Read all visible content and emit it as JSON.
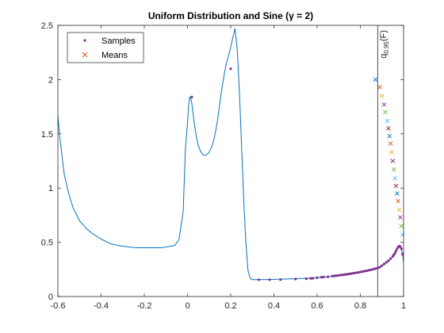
{
  "chart_data": {
    "type": "line",
    "title": "Uniform Distribution and Sine  (γ = 2)",
    "xlabel": "",
    "ylabel": "",
    "xlim": [
      -0.6,
      1
    ],
    "ylim": [
      0,
      2.5
    ],
    "xticks": [
      -0.6,
      -0.4,
      -0.2,
      0,
      0.2,
      0.4,
      0.6,
      0.8,
      1
    ],
    "xtick_labels": [
      "-0.6",
      "-0.4",
      "-0.2",
      "0",
      "0.2",
      "0.4",
      "0.6",
      "0.8",
      "1"
    ],
    "yticks": [
      0,
      0.5,
      1,
      1.5,
      2,
      2.5
    ],
    "ytick_labels": [
      "0",
      "0.5",
      "1",
      "1.5",
      "2",
      "2.5"
    ],
    "grid": false,
    "legend": {
      "location": "top-left",
      "entries": [
        {
          "label": "Samples",
          "marker": "dot",
          "color": "#7E2F8E"
        },
        {
          "label": "Means",
          "marker": "x",
          "color": "#D95319"
        }
      ]
    },
    "vline": {
      "x": 0.88,
      "label_main": "q",
      "label_sub": "0.95",
      "label_tail": "(F)",
      "color": "#000000"
    },
    "curve": {
      "color": "#0072BD",
      "x": [
        -0.6,
        -0.59,
        -0.58,
        -0.57,
        -0.55,
        -0.53,
        -0.5,
        -0.47,
        -0.44,
        -0.4,
        -0.36,
        -0.32,
        -0.28,
        -0.24,
        -0.2,
        -0.16,
        -0.12,
        -0.09,
        -0.06,
        -0.04,
        -0.02,
        -0.01,
        0,
        0.005,
        0.01,
        0.015,
        0.02,
        0.03,
        0.04,
        0.05,
        0.06,
        0.07,
        0.08,
        0.09,
        0.1,
        0.11,
        0.12,
        0.13,
        0.14,
        0.15,
        0.16,
        0.17,
        0.18,
        0.19,
        0.2,
        0.21,
        0.22,
        0.23,
        0.24,
        0.25,
        0.26,
        0.27,
        0.28,
        0.29,
        0.3,
        0.32,
        0.36,
        0.4,
        0.45,
        0.5,
        0.55,
        0.6,
        0.65,
        0.7,
        0.75,
        0.8,
        0.84,
        0.87,
        0.9,
        0.93,
        0.95,
        0.96,
        0.97,
        0.975,
        0.98,
        0.985,
        0.99,
        0.995,
        1.0
      ],
      "y": [
        1.67,
        1.45,
        1.28,
        1.12,
        0.95,
        0.82,
        0.7,
        0.63,
        0.58,
        0.53,
        0.49,
        0.47,
        0.46,
        0.45,
        0.45,
        0.45,
        0.45,
        0.46,
        0.47,
        0.52,
        0.78,
        1.35,
        1.6,
        1.76,
        1.84,
        1.83,
        1.78,
        1.62,
        1.48,
        1.39,
        1.34,
        1.31,
        1.3,
        1.31,
        1.33,
        1.37,
        1.43,
        1.52,
        1.64,
        1.79,
        1.93,
        2.05,
        2.15,
        2.22,
        2.3,
        2.39,
        2.47,
        2.28,
        1.9,
        1.4,
        0.9,
        0.5,
        0.24,
        0.17,
        0.155,
        0.155,
        0.156,
        0.158,
        0.161,
        0.164,
        0.168,
        0.174,
        0.182,
        0.192,
        0.205,
        0.222,
        0.24,
        0.26,
        0.285,
        0.325,
        0.37,
        0.4,
        0.44,
        0.46,
        0.47,
        0.46,
        0.44,
        0.39,
        0.32
      ]
    },
    "samples": {
      "color": "#7E2F8E",
      "x": [
        0.02,
        0.2,
        0.33,
        0.38,
        0.43,
        0.5,
        0.55,
        0.57,
        0.58,
        0.6,
        0.62,
        0.63,
        0.65,
        0.67,
        0.68,
        0.69,
        0.7,
        0.71,
        0.72,
        0.73,
        0.74,
        0.75,
        0.76,
        0.77,
        0.78,
        0.79,
        0.8,
        0.81,
        0.82,
        0.83,
        0.84,
        0.85,
        0.86,
        0.87,
        0.88,
        0.89,
        0.9,
        0.91,
        0.92,
        0.93,
        0.94,
        0.95,
        0.955,
        0.96,
        0.965,
        0.97,
        0.975,
        0.98,
        0.985,
        0.99,
        0.995
      ],
      "y": [
        1.84,
        2.1,
        0.155,
        0.155,
        0.156,
        0.161,
        0.164,
        0.167,
        0.168,
        0.174,
        0.178,
        0.18,
        0.182,
        0.188,
        0.19,
        0.192,
        0.195,
        0.198,
        0.2,
        0.203,
        0.206,
        0.209,
        0.212,
        0.216,
        0.219,
        0.222,
        0.226,
        0.23,
        0.234,
        0.238,
        0.242,
        0.247,
        0.252,
        0.257,
        0.263,
        0.27,
        0.285,
        0.3,
        0.315,
        0.33,
        0.35,
        0.37,
        0.385,
        0.4,
        0.42,
        0.44,
        0.455,
        0.465,
        0.46,
        0.44,
        0.39
      ]
    },
    "means": {
      "colors": [
        "#0072BD",
        "#D95319",
        "#EDB120",
        "#7E2F8E",
        "#77AC30",
        "#4DBEEE",
        "#A2142F"
      ],
      "x": [
        0.87,
        0.89,
        0.9,
        0.91,
        0.915,
        0.925,
        0.93,
        0.935,
        0.94,
        0.945,
        0.95,
        0.955,
        0.96,
        0.965,
        0.97,
        0.975,
        0.98,
        0.985,
        0.99,
        0.995
      ],
      "y": [
        2.0,
        1.93,
        1.85,
        1.77,
        1.7,
        1.62,
        1.55,
        1.48,
        1.41,
        1.33,
        1.25,
        1.17,
        1.09,
        1.02,
        0.95,
        0.88,
        0.8,
        0.73,
        0.65,
        0.57
      ]
    }
  }
}
